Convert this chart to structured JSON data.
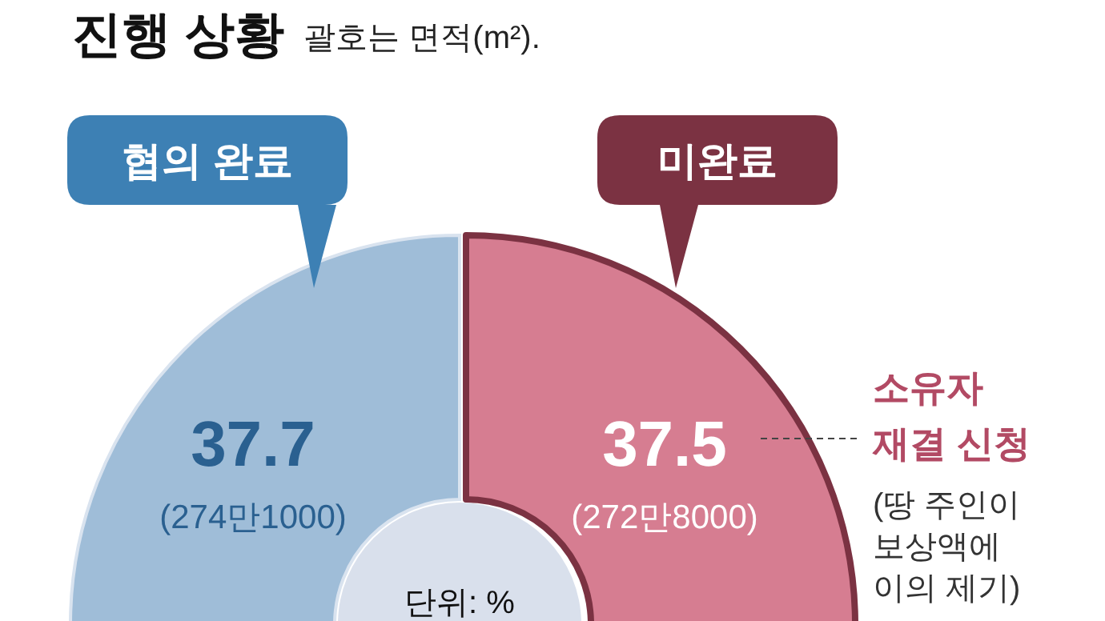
{
  "chart_data": {
    "type": "donut",
    "title": "진행 상황",
    "subtitle": "괄호는 면적(m²).",
    "categories": [
      "협의 완료",
      "소유자 재결 신청"
    ],
    "values": [
      37.7,
      37.5
    ],
    "colors": [
      "#9fbdd8",
      "#d67d91"
    ],
    "data_labels": true,
    "annotations": [
      "미완료",
      "(274만1000)",
      "(272만8000)",
      "(땅 주인이 보상액에 이의 제기)",
      "단위: %"
    ]
  }
}
